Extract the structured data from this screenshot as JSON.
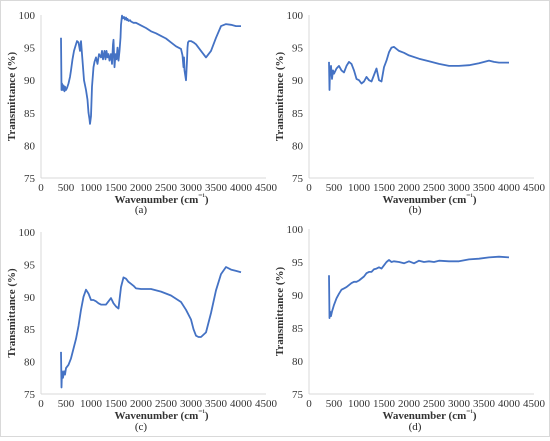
{
  "chart_data": [
    {
      "type": "line",
      "panel_label": "(a)",
      "xlabel": "Wavenumber (cm⁻¹)",
      "ylabel": "Transmittance (%)",
      "xlim": [
        0,
        4500
      ],
      "ylim": [
        75,
        100
      ],
      "xticks": [
        0,
        500,
        1000,
        1500,
        2000,
        2500,
        3000,
        3500,
        4000,
        4500
      ],
      "yticks": [
        75,
        80,
        85,
        90,
        95,
        100
      ],
      "color": "#4472C4",
      "x": [
        400,
        410,
        420,
        440,
        450,
        470,
        480,
        500,
        520,
        550,
        580,
        600,
        630,
        660,
        700,
        720,
        750,
        780,
        800,
        830,
        860,
        900,
        930,
        950,
        970,
        980,
        1000,
        1020,
        1030,
        1050,
        1070,
        1100,
        1130,
        1160,
        1200,
        1220,
        1240,
        1260,
        1270,
        1290,
        1310,
        1330,
        1350,
        1370,
        1400,
        1420,
        1440,
        1450,
        1470,
        1490,
        1510,
        1530,
        1550,
        1570,
        1590,
        1600,
        1620,
        1640,
        1660,
        1680,
        1700,
        1720,
        1730,
        1750,
        1780,
        1800,
        1850,
        1900,
        2000,
        2100,
        2200,
        2300,
        2400,
        2500,
        2600,
        2700,
        2800,
        2830,
        2850,
        2860,
        2870,
        2900,
        2920,
        2930,
        2940,
        2960,
        3000,
        3050,
        3100,
        3200,
        3300,
        3400,
        3500,
        3600,
        3700,
        3800,
        3900,
        4000
      ],
      "y": [
        96.5,
        88.5,
        89.5,
        88.5,
        89.2,
        88.3,
        89,
        88.5,
        88.8,
        89.5,
        90.5,
        91.5,
        93.2,
        94.5,
        95.5,
        96,
        95.8,
        94.5,
        96,
        93,
        90,
        88.5,
        87,
        85,
        84,
        83.3,
        84.5,
        89,
        90,
        92,
        92.8,
        93.5,
        92.5,
        94,
        93.5,
        94.5,
        93.2,
        94,
        94.5,
        93.2,
        94.5,
        93.5,
        94,
        93,
        94,
        92.5,
        95.5,
        96.2,
        92,
        94,
        93.2,
        95,
        93,
        94.5,
        96.5,
        98.5,
        99.9,
        99.5,
        99.7,
        99.3,
        99.6,
        99.2,
        99.4,
        99.1,
        99.2,
        99,
        98.8,
        98.8,
        98.4,
        98,
        97.5,
        97.2,
        96.8,
        96.4,
        95.8,
        95.2,
        94.8,
        93.8,
        92,
        93.5,
        91.5,
        90,
        93,
        95,
        95.8,
        96,
        96,
        95.8,
        95.5,
        94.5,
        93.5,
        94.5,
        96.5,
        98.3,
        98.6,
        98.5,
        98.3,
        98.3
      ]
    },
    {
      "type": "line",
      "panel_label": "(b)",
      "xlabel": "Wavenumber (cm⁻¹)",
      "ylabel": "Transmittance (%)",
      "xlim": [
        0,
        4500
      ],
      "ylim": [
        75,
        100
      ],
      "xticks": [
        0,
        500,
        1000,
        1500,
        2000,
        2500,
        3000,
        3500,
        4000,
        4500
      ],
      "yticks": [
        75,
        80,
        85,
        90,
        95,
        100
      ],
      "color": "#4472C4",
      "x": [
        400,
        410,
        420,
        440,
        460,
        480,
        500,
        550,
        600,
        650,
        700,
        750,
        800,
        850,
        900,
        950,
        1000,
        1050,
        1100,
        1150,
        1200,
        1250,
        1300,
        1350,
        1400,
        1450,
        1500,
        1550,
        1600,
        1650,
        1700,
        1750,
        1800,
        1900,
        2000,
        2200,
        2400,
        2600,
        2800,
        3000,
        3200,
        3400,
        3600,
        3700,
        3800,
        4000
      ],
      "y": [
        92.8,
        88.5,
        91.2,
        92.2,
        90.2,
        91.5,
        91,
        91.8,
        92.2,
        91.5,
        91.2,
        92.2,
        92.8,
        92.5,
        91.5,
        90.2,
        90,
        89.5,
        89.8,
        90.5,
        90,
        89.8,
        90.8,
        91.8,
        90,
        89.8,
        92,
        93,
        94.3,
        95,
        95.1,
        94.8,
        94.5,
        94.2,
        93.8,
        93.3,
        92.9,
        92.5,
        92.2,
        92.2,
        92.3,
        92.6,
        93,
        92.8,
        92.7,
        92.7
      ]
    },
    {
      "type": "line",
      "panel_label": "(c)",
      "xlabel": "Wavenumber (cm⁻¹)",
      "ylabel": "Transmittance (%)",
      "xlim": [
        0,
        4500
      ],
      "ylim": [
        75,
        100
      ],
      "xticks": [
        0,
        500,
        1000,
        1500,
        2000,
        2500,
        3000,
        3500,
        4000,
        4500
      ],
      "yticks": [
        75,
        80,
        85,
        90,
        95,
        100
      ],
      "color": "#4472C4",
      "x": [
        400,
        410,
        420,
        440,
        460,
        480,
        500,
        550,
        600,
        650,
        700,
        750,
        800,
        850,
        900,
        950,
        1000,
        1050,
        1100,
        1150,
        1200,
        1300,
        1400,
        1450,
        1500,
        1550,
        1600,
        1650,
        1700,
        1750,
        1800,
        1850,
        1900,
        2000,
        2200,
        2400,
        2600,
        2800,
        2900,
        3000,
        3050,
        3100,
        3150,
        3200,
        3300,
        3400,
        3500,
        3600,
        3700,
        3800,
        3900,
        4000
      ],
      "y": [
        81.5,
        76,
        78.5,
        77.5,
        78.5,
        78,
        79,
        79.5,
        80.5,
        82,
        83.5,
        85.5,
        88,
        90,
        91.1,
        90.5,
        89.5,
        89.5,
        89.3,
        89,
        88.8,
        88.8,
        89.8,
        89,
        88.5,
        88.2,
        91.5,
        93,
        92.8,
        92.3,
        92,
        91.7,
        91.3,
        91.2,
        91.2,
        90.8,
        90.2,
        89.2,
        88,
        86.5,
        85,
        84,
        83.8,
        83.8,
        84.5,
        87.5,
        91,
        93.5,
        94.6,
        94.2,
        94,
        93.8
      ]
    },
    {
      "type": "line",
      "panel_label": "(d)",
      "xlabel": "Wavenumber (cm⁻¹)",
      "ylabel": "Transmittance (%)",
      "xlim": [
        0,
        4500
      ],
      "ylim": [
        75,
        100
      ],
      "xticks": [
        0,
        500,
        1000,
        1500,
        2000,
        2500,
        3000,
        3500,
        4000,
        4500
      ],
      "yticks": [
        75,
        80,
        85,
        90,
        95,
        100
      ],
      "color": "#4472C4",
      "x": [
        400,
        410,
        420,
        440,
        460,
        480,
        500,
        550,
        600,
        650,
        700,
        750,
        800,
        850,
        900,
        950,
        1000,
        1050,
        1100,
        1150,
        1200,
        1250,
        1300,
        1350,
        1400,
        1450,
        1500,
        1550,
        1600,
        1650,
        1700,
        1800,
        1900,
        2000,
        2100,
        2200,
        2300,
        2400,
        2500,
        2600,
        2800,
        3000,
        3200,
        3400,
        3600,
        3800,
        4000
      ],
      "y": [
        93,
        86.5,
        87.5,
        86.8,
        87.5,
        88,
        88.5,
        89.5,
        90.2,
        90.8,
        91,
        91.2,
        91.5,
        91.8,
        92,
        92,
        92.2,
        92.5,
        92.8,
        93.3,
        93.5,
        93.5,
        93.9,
        94,
        94.2,
        94,
        94.5,
        95,
        95.3,
        95,
        95.1,
        95,
        94.8,
        95.1,
        94.8,
        95.2,
        95,
        95.1,
        95,
        95.2,
        95.1,
        95.1,
        95.4,
        95.5,
        95.7,
        95.8,
        95.7
      ]
    }
  ]
}
